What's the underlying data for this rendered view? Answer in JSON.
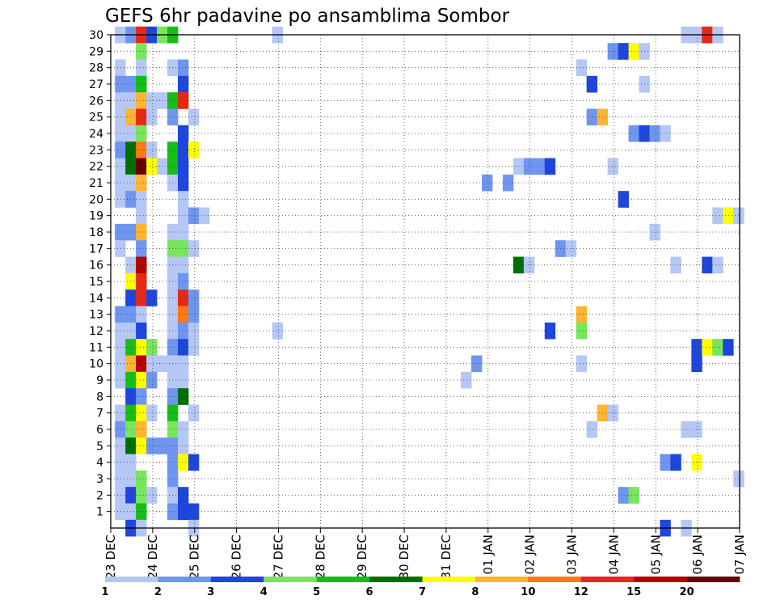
{
  "chart_data": {
    "type": "heatmap",
    "title": "GEFS 6hr padavine po ansamblima Sombor",
    "xlabel": "",
    "ylabel": "",
    "x_ticks": [
      "23 DEC",
      "24 DEC",
      "25 DEC",
      "26 DEC",
      "27 DEC",
      "28 DEC",
      "29 DEC",
      "30 DEC",
      "31 DEC",
      "01 JAN",
      "02 JAN",
      "03 JAN",
      "04 JAN",
      "05 JAN",
      "06 JAN",
      "07 JAN"
    ],
    "y_ticks": [
      "1",
      "2",
      "3",
      "4",
      "5",
      "6",
      "7",
      "8",
      "9",
      "10",
      "11",
      "12",
      "13",
      "14",
      "15",
      "16",
      "17",
      "18",
      "19",
      "20",
      "21",
      "22",
      "23",
      "24",
      "25",
      "26",
      "27",
      "28",
      "29",
      "30"
    ],
    "y_range": [
      0,
      30
    ],
    "time_step_hours": 6,
    "grid": "dotted",
    "colorbar": {
      "labels": [
        "1",
        "2",
        "3",
        "4",
        "5",
        "6",
        "7",
        "8",
        "10",
        "12",
        "15",
        "20"
      ],
      "colors": [
        "#b4c7f5",
        "#6e96f0",
        "#1e46dc",
        "#78e65a",
        "#14be14",
        "#006e00",
        "#ffff00",
        "#ffb432",
        "#ff7814",
        "#e62814",
        "#b40000",
        "#640000"
      ]
    },
    "cells": [
      [
        30,
        0.1,
        1
      ],
      [
        30,
        0.35,
        2
      ],
      [
        30,
        0.6,
        10
      ],
      [
        30,
        0.85,
        3
      ],
      [
        30,
        1.1,
        4
      ],
      [
        30,
        1.35,
        5
      ],
      [
        30,
        3.85,
        1
      ],
      [
        30,
        13.6,
        1
      ],
      [
        30,
        13.85,
        1
      ],
      [
        30,
        14.1,
        10
      ],
      [
        30,
        14.35,
        1
      ],
      [
        29,
        0.6,
        4
      ],
      [
        29,
        11.85,
        2
      ],
      [
        29,
        12.1,
        3
      ],
      [
        29,
        12.35,
        7
      ],
      [
        29,
        12.6,
        1
      ],
      [
        28,
        0.1,
        1
      ],
      [
        28,
        0.6,
        1
      ],
      [
        28,
        1.35,
        1
      ],
      [
        28,
        1.6,
        2
      ],
      [
        28,
        11.1,
        1
      ],
      [
        27,
        0.1,
        2
      ],
      [
        27,
        0.35,
        2
      ],
      [
        27,
        0.6,
        5
      ],
      [
        27,
        1.6,
        3
      ],
      [
        27,
        11.35,
        3
      ],
      [
        27,
        12.6,
        1
      ],
      [
        26,
        0.1,
        1
      ],
      [
        26,
        0.35,
        1
      ],
      [
        26,
        0.6,
        8
      ],
      [
        26,
        0.85,
        1
      ],
      [
        26,
        1.1,
        1
      ],
      [
        26,
        1.35,
        5
      ],
      [
        26,
        1.6,
        10
      ],
      [
        25,
        0.1,
        1
      ],
      [
        25,
        0.35,
        8
      ],
      [
        25,
        0.6,
        10
      ],
      [
        25,
        0.85,
        1
      ],
      [
        25,
        1.35,
        2
      ],
      [
        25,
        1.85,
        1
      ],
      [
        25,
        11.35,
        2
      ],
      [
        25,
        11.6,
        8
      ],
      [
        24,
        0.1,
        1
      ],
      [
        24,
        0.35,
        1
      ],
      [
        24,
        0.6,
        4
      ],
      [
        24,
        1.6,
        3
      ],
      [
        24,
        12.35,
        2
      ],
      [
        24,
        12.6,
        3
      ],
      [
        24,
        12.85,
        2
      ],
      [
        24,
        13.1,
        1
      ],
      [
        23,
        0.1,
        2
      ],
      [
        23,
        0.35,
        6
      ],
      [
        23,
        0.6,
        9
      ],
      [
        23,
        0.85,
        1
      ],
      [
        23,
        1.35,
        5
      ],
      [
        23,
        1.6,
        3
      ],
      [
        23,
        1.85,
        7
      ],
      [
        22,
        0.1,
        1
      ],
      [
        22,
        0.35,
        6
      ],
      [
        22,
        0.6,
        12
      ],
      [
        22,
        0.85,
        7
      ],
      [
        22,
        1.1,
        1
      ],
      [
        22,
        1.35,
        5
      ],
      [
        22,
        1.6,
        3
      ],
      [
        22,
        9.6,
        1
      ],
      [
        22,
        9.85,
        2
      ],
      [
        22,
        10.1,
        2
      ],
      [
        22,
        10.35,
        3
      ],
      [
        22,
        11.85,
        1
      ],
      [
        21,
        0.1,
        1
      ],
      [
        21,
        0.35,
        1
      ],
      [
        21,
        0.6,
        8
      ],
      [
        21,
        1.35,
        1
      ],
      [
        21,
        1.6,
        3
      ],
      [
        21,
        8.85,
        2
      ],
      [
        21,
        9.35,
        2
      ],
      [
        20,
        0.1,
        1
      ],
      [
        20,
        0.35,
        2
      ],
      [
        20,
        0.6,
        1
      ],
      [
        20,
        1.6,
        1
      ],
      [
        20,
        12.1,
        3
      ],
      [
        19,
        0.6,
        1
      ],
      [
        19,
        1.6,
        1
      ],
      [
        19,
        1.85,
        2
      ],
      [
        19,
        2.1,
        1
      ],
      [
        19,
        14.35,
        1
      ],
      [
        19,
        14.6,
        7
      ],
      [
        19,
        14.85,
        1
      ],
      [
        18,
        0.1,
        2
      ],
      [
        18,
        0.35,
        2
      ],
      [
        18,
        0.6,
        8
      ],
      [
        18,
        1.35,
        1
      ],
      [
        18,
        1.6,
        1
      ],
      [
        18,
        12.85,
        1
      ],
      [
        17,
        0.1,
        1
      ],
      [
        17,
        0.6,
        2
      ],
      [
        17,
        1.35,
        4
      ],
      [
        17,
        1.6,
        4
      ],
      [
        17,
        1.85,
        1
      ],
      [
        17,
        10.6,
        2
      ],
      [
        17,
        10.85,
        1
      ],
      [
        16,
        0.35,
        1
      ],
      [
        16,
        0.6,
        11
      ],
      [
        16,
        1.35,
        1
      ],
      [
        16,
        1.6,
        1
      ],
      [
        16,
        9.6,
        6
      ],
      [
        16,
        9.85,
        1
      ],
      [
        16,
        13.35,
        1
      ],
      [
        16,
        14.1,
        3
      ],
      [
        16,
        14.35,
        1
      ],
      [
        15,
        0.35,
        7
      ],
      [
        15,
        0.6,
        10
      ],
      [
        15,
        1.35,
        1
      ],
      [
        15,
        1.6,
        2
      ],
      [
        14,
        0.35,
        3
      ],
      [
        14,
        0.6,
        10
      ],
      [
        14,
        0.85,
        3
      ],
      [
        14,
        1.35,
        1
      ],
      [
        14,
        1.6,
        10
      ],
      [
        14,
        1.85,
        2
      ],
      [
        13,
        0.1,
        2
      ],
      [
        13,
        0.35,
        2
      ],
      [
        13,
        0.6,
        1
      ],
      [
        13,
        1.35,
        1
      ],
      [
        13,
        1.6,
        9
      ],
      [
        13,
        1.85,
        2
      ],
      [
        13,
        11.1,
        8
      ],
      [
        12,
        0.1,
        1
      ],
      [
        12,
        0.35,
        1
      ],
      [
        12,
        0.6,
        3
      ],
      [
        12,
        1.35,
        1
      ],
      [
        12,
        1.6,
        2
      ],
      [
        12,
        1.85,
        1
      ],
      [
        12,
        3.85,
        1
      ],
      [
        12,
        10.35,
        3
      ],
      [
        12,
        11.1,
        4
      ],
      [
        11,
        0.1,
        1
      ],
      [
        11,
        0.35,
        5
      ],
      [
        11,
        0.6,
        7
      ],
      [
        11,
        0.85,
        4
      ],
      [
        11,
        1.35,
        2
      ],
      [
        11,
        1.6,
        3
      ],
      [
        11,
        1.85,
        1
      ],
      [
        11,
        13.85,
        3
      ],
      [
        11,
        14.1,
        7
      ],
      [
        11,
        14.35,
        4
      ],
      [
        11,
        14.6,
        3
      ],
      [
        10,
        0.1,
        1
      ],
      [
        10,
        0.35,
        8
      ],
      [
        10,
        0.6,
        11
      ],
      [
        10,
        0.85,
        1
      ],
      [
        10,
        1.1,
        1
      ],
      [
        10,
        1.35,
        1
      ],
      [
        10,
        1.6,
        1
      ],
      [
        10,
        8.6,
        2
      ],
      [
        10,
        11.1,
        1
      ],
      [
        10,
        13.85,
        3
      ],
      [
        9,
        0.1,
        1
      ],
      [
        9,
        0.35,
        5
      ],
      [
        9,
        0.6,
        7
      ],
      [
        9,
        0.85,
        2
      ],
      [
        9,
        1.35,
        1
      ],
      [
        9,
        1.6,
        1
      ],
      [
        9,
        8.35,
        1
      ],
      [
        8,
        0.35,
        3
      ],
      [
        8,
        0.6,
        2
      ],
      [
        8,
        1.35,
        2
      ],
      [
        8,
        1.6,
        6
      ],
      [
        7,
        0.1,
        1
      ],
      [
        7,
        0.35,
        5
      ],
      [
        7,
        0.6,
        7
      ],
      [
        7,
        0.85,
        1
      ],
      [
        7,
        1.35,
        5
      ],
      [
        7,
        1.85,
        1
      ],
      [
        7,
        11.6,
        8
      ],
      [
        7,
        11.85,
        1
      ],
      [
        6,
        0.1,
        2
      ],
      [
        6,
        0.35,
        4
      ],
      [
        6,
        0.6,
        8
      ],
      [
        6,
        1.35,
        4
      ],
      [
        6,
        1.6,
        1
      ],
      [
        6,
        11.35,
        1
      ],
      [
        6,
        13.6,
        1
      ],
      [
        6,
        13.85,
        1
      ],
      [
        5,
        0.1,
        1
      ],
      [
        5,
        0.35,
        6
      ],
      [
        5,
        0.6,
        7
      ],
      [
        5,
        0.85,
        2
      ],
      [
        5,
        1.1,
        2
      ],
      [
        5,
        1.35,
        2
      ],
      [
        5,
        1.6,
        1
      ],
      [
        4,
        0.1,
        1
      ],
      [
        4,
        0.35,
        1
      ],
      [
        4,
        1.35,
        2
      ],
      [
        4,
        1.6,
        7
      ],
      [
        4,
        1.85,
        3
      ],
      [
        4,
        13.1,
        2
      ],
      [
        4,
        13.35,
        3
      ],
      [
        4,
        13.85,
        7
      ],
      [
        3,
        0.1,
        1
      ],
      [
        3,
        0.35,
        1
      ],
      [
        3,
        0.6,
        4
      ],
      [
        3,
        1.35,
        2
      ],
      [
        3,
        14.85,
        1
      ],
      [
        2,
        0.1,
        1
      ],
      [
        2,
        0.35,
        3
      ],
      [
        2,
        0.6,
        4
      ],
      [
        2,
        0.85,
        1
      ],
      [
        2,
        1.35,
        1
      ],
      [
        2,
        1.6,
        3
      ],
      [
        2,
        12.1,
        2
      ],
      [
        2,
        12.35,
        4
      ],
      [
        1,
        0.1,
        1
      ],
      [
        1,
        0.35,
        1
      ],
      [
        1,
        0.6,
        5
      ],
      [
        1,
        1.35,
        2
      ],
      [
        1,
        1.6,
        3
      ],
      [
        1,
        1.85,
        3
      ],
      [
        0,
        0.35,
        3
      ],
      [
        0,
        0.6,
        1
      ],
      [
        0,
        1.85,
        1
      ],
      [
        0,
        13.1,
        3
      ],
      [
        0,
        13.6,
        1
      ]
    ]
  }
}
